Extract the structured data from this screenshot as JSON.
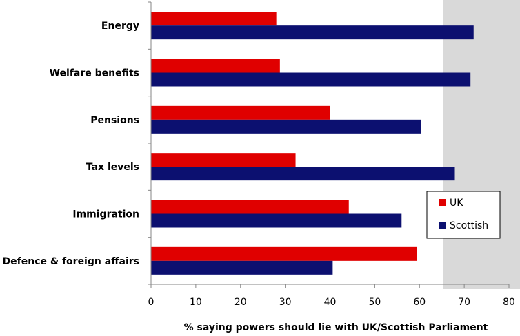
{
  "chart_data": {
    "type": "bar",
    "orientation": "horizontal",
    "categories": [
      "Energy",
      "Welfare benefits",
      "Pensions",
      "Tax levels",
      "Immigration",
      "Defence & foreign affairs"
    ],
    "series": [
      {
        "name": "UK",
        "values": [
          28,
          28.8,
          40,
          32.3,
          44.2,
          59.5
        ]
      },
      {
        "name": "Scottish",
        "values": [
          72.1,
          71.4,
          60.3,
          67.9,
          56,
          40.6
        ]
      }
    ],
    "xlabel": "% saying powers should lie with UK/Scottish Parliament",
    "xlim": [
      0,
      80
    ],
    "xticks": [
      0,
      10,
      20,
      30,
      40,
      50,
      60,
      70,
      80
    ],
    "grid": false,
    "legend_position": "right",
    "colors": {
      "UK": "#e00000",
      "Scottish": "#0c1070",
      "right_panel": "#d9d9d9",
      "axis": "#868686",
      "text": "#000000"
    }
  }
}
